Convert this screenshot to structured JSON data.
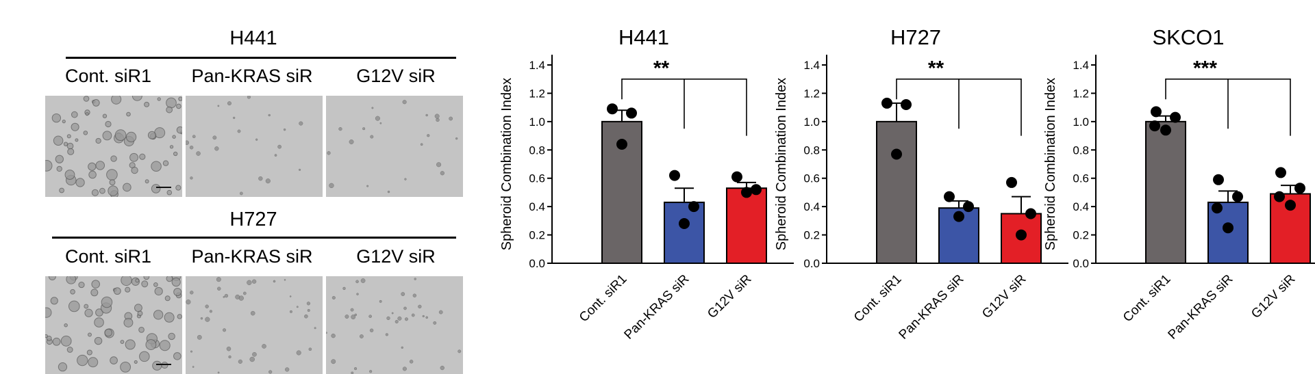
{
  "images": {
    "blocks": [
      {
        "title": "H441",
        "columns": [
          "Cont. siR1",
          "Pan-KRAS siR",
          "G12V siR"
        ],
        "spheroid_density": [
          "high",
          "low",
          "low"
        ]
      },
      {
        "title": "H727",
        "columns": [
          "Cont. siR1",
          "Pan-KRAS siR",
          "G12V siR"
        ],
        "spheroid_density": [
          "high",
          "medium",
          "medium"
        ]
      }
    ]
  },
  "colors": {
    "control": "#6a6566",
    "pan_kras": "#3c55a6",
    "g12v": "#e31f26",
    "micro_bg": "#c4c4c4"
  },
  "chart_data": [
    {
      "type": "bar",
      "title": "H441",
      "ylabel": "Spheroid Combination Index",
      "ylim": [
        0,
        1.4
      ],
      "yticks": [
        "0.0",
        "0.2",
        "0.4",
        "0.6",
        "0.8",
        "1.0",
        "1.2",
        "1.4"
      ],
      "categories": [
        "Cont. siR1",
        "Pan-KRAS siR",
        "G12V siR"
      ],
      "values": [
        1.0,
        0.43,
        0.53
      ],
      "errors": [
        0.08,
        0.1,
        0.04
      ],
      "points": [
        [
          1.09,
          1.06,
          0.84
        ],
        [
          0.62,
          0.4,
          0.28
        ],
        [
          0.61,
          0.52,
          0.5
        ]
      ],
      "significance": "**"
    },
    {
      "type": "bar",
      "title": "H727",
      "ylabel": "Spheroid Combination Index",
      "ylim": [
        0,
        1.4
      ],
      "yticks": [
        "0.0",
        "0.2",
        "0.4",
        "0.6",
        "0.8",
        "1.0",
        "1.2",
        "1.4"
      ],
      "categories": [
        "Cont. siR1",
        "Pan-KRAS siR",
        "G12V siR"
      ],
      "values": [
        1.0,
        0.39,
        0.35
      ],
      "errors": [
        0.13,
        0.05,
        0.12
      ],
      "points": [
        [
          1.13,
          1.12,
          0.77
        ],
        [
          0.47,
          0.4,
          0.33
        ],
        [
          0.57,
          0.35,
          0.2
        ]
      ],
      "significance": "**"
    },
    {
      "type": "bar",
      "title": "SKCO1",
      "ylabel": "Spheroid Combination Index",
      "ylim": [
        0,
        1.4
      ],
      "yticks": [
        "0.0",
        "0.2",
        "0.4",
        "0.6",
        "0.8",
        "1.0",
        "1.2",
        "1.4"
      ],
      "categories": [
        "Cont. siR1",
        "Pan-KRAS siR",
        "G12V siR"
      ],
      "values": [
        1.0,
        0.43,
        0.49
      ],
      "errors": [
        0.04,
        0.08,
        0.06
      ],
      "points": [
        [
          1.07,
          1.03,
          0.97,
          0.94
        ],
        [
          0.59,
          0.47,
          0.39,
          0.25
        ],
        [
          0.64,
          0.53,
          0.47,
          0.41
        ]
      ],
      "significance": "***"
    }
  ]
}
